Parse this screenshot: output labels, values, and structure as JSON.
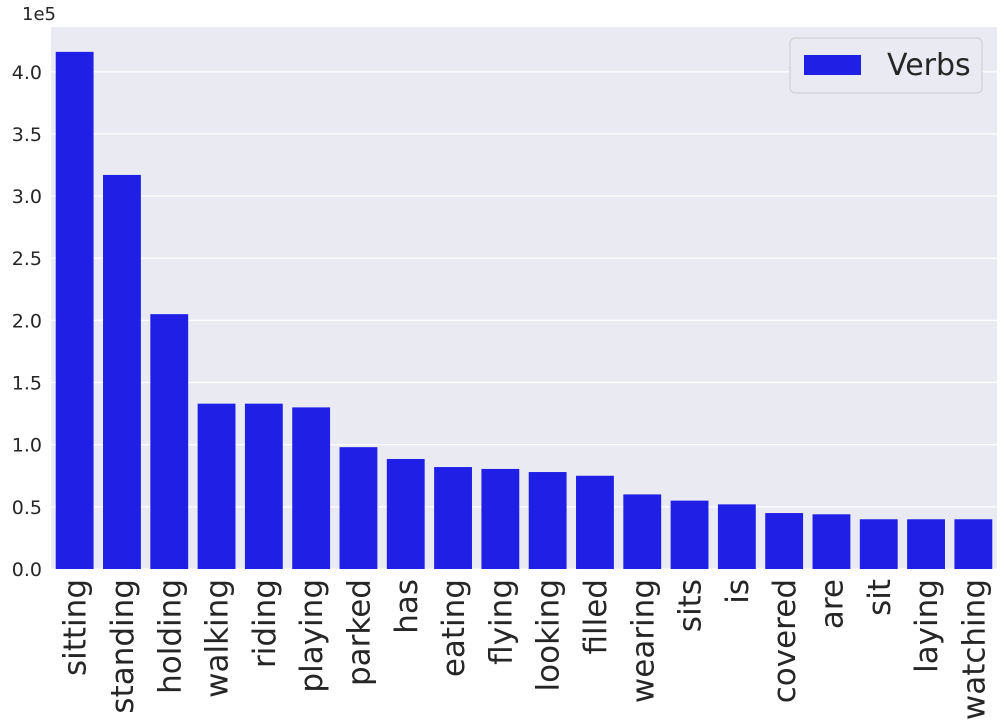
{
  "chart_data": {
    "type": "bar",
    "y_offset_label": "1e5",
    "categories": [
      "sitting",
      "standing",
      "holding",
      "walking",
      "riding",
      "playing",
      "parked",
      "has",
      "eating",
      "flying",
      "looking",
      "filled",
      "wearing",
      "sits",
      "is",
      "covered",
      "are",
      "sit",
      "laying",
      "watching"
    ],
    "series": [
      {
        "name": "Verbs",
        "color": "#1f1fe6",
        "values": [
          4.16,
          3.17,
          2.05,
          1.33,
          1.33,
          1.3,
          0.98,
          0.885,
          0.82,
          0.805,
          0.78,
          0.75,
          0.6,
          0.55,
          0.52,
          0.45,
          0.44,
          0.4,
          0.4,
          0.4
        ]
      }
    ],
    "ylim": [
      0,
      4.36
    ],
    "yticks": [
      {
        "value": 0,
        "label": "0.0"
      },
      {
        "value": 0.5,
        "label": "0.5"
      },
      {
        "value": 1,
        "label": "1.0"
      },
      {
        "value": 1.5,
        "label": "1.5"
      },
      {
        "value": 2,
        "label": "2.0"
      },
      {
        "value": 2.5,
        "label": "2.5"
      },
      {
        "value": 3,
        "label": "3.0"
      },
      {
        "value": 3.5,
        "label": "3.5"
      },
      {
        "value": 4,
        "label": "4.0"
      }
    ],
    "grid": true,
    "legend": "upper right"
  }
}
